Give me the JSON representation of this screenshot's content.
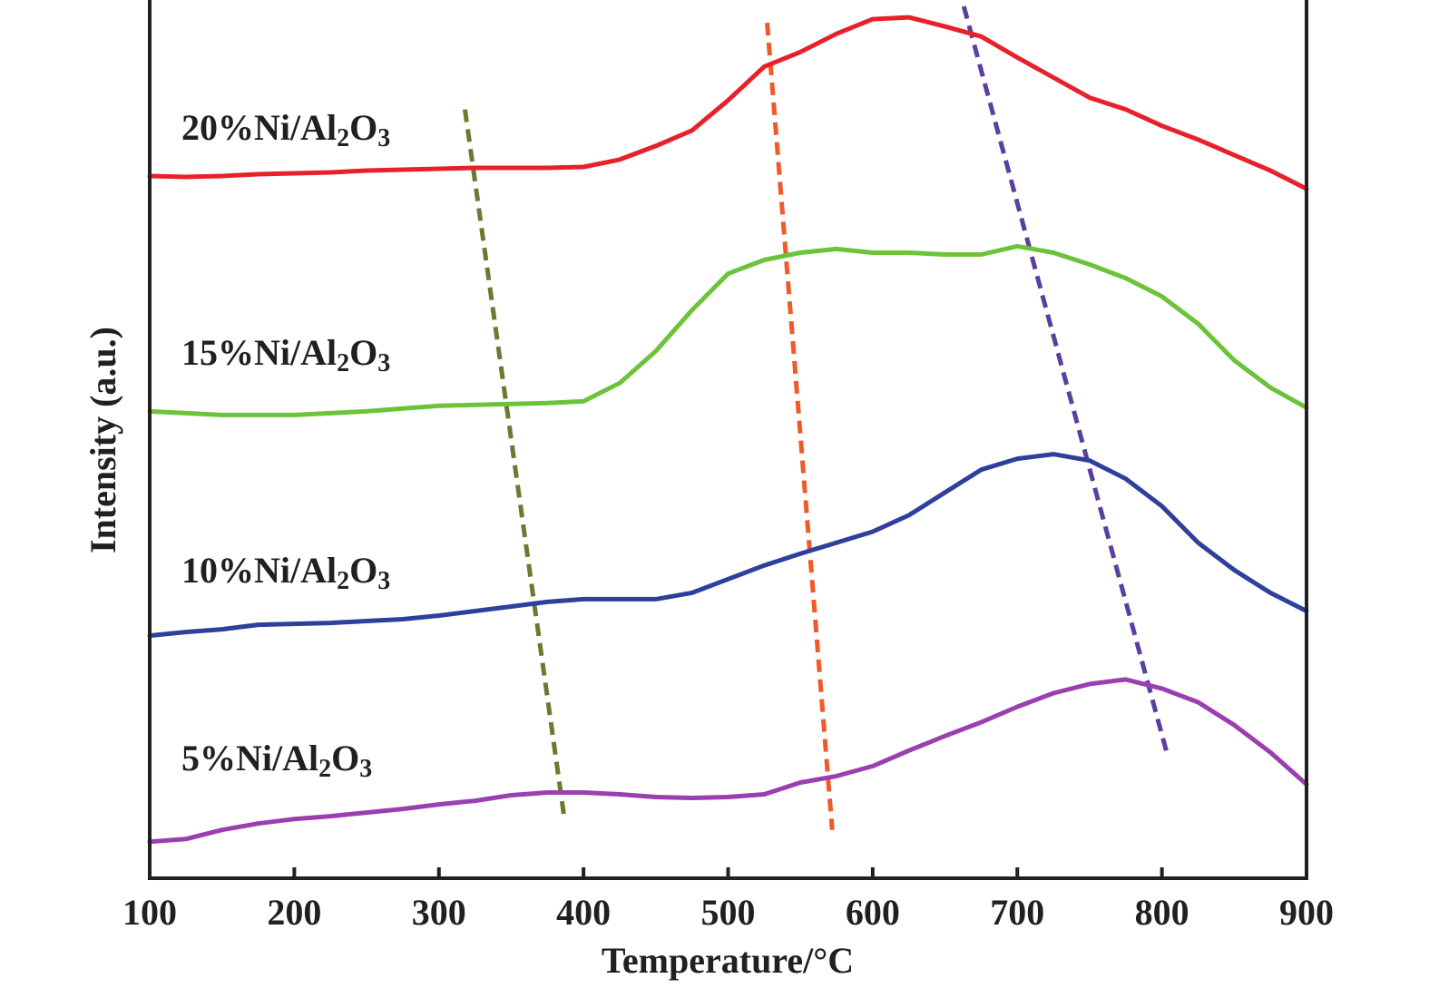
{
  "chart_data": {
    "type": "line",
    "x_label": "Temperature/°C",
    "y_label": "Intensity (a.u.)",
    "xlim": [
      100,
      900
    ],
    "xticks": [
      100,
      200,
      300,
      400,
      500,
      600,
      700,
      800,
      900
    ],
    "ylim": [
      0,
      968
    ],
    "x": [
      100,
      125,
      150,
      175,
      200,
      225,
      250,
      275,
      300,
      325,
      350,
      375,
      400,
      425,
      450,
      475,
      500,
      525,
      550,
      575,
      600,
      625,
      650,
      675,
      700,
      725,
      750,
      775,
      800,
      825,
      850,
      875,
      900
    ],
    "series": [
      {
        "name": "20%Ni/Al2O3",
        "color": "#e8202a",
        "values": [
          770,
          769,
          770,
          772,
          773,
          774,
          776,
          777,
          778,
          779,
          779,
          779,
          780,
          788,
          803,
          820,
          853,
          890,
          906,
          926,
          942,
          944,
          934,
          923,
          900,
          878,
          856,
          843,
          825,
          810,
          793,
          776,
          756
        ]
      },
      {
        "name": "15%Ni/Al2O3",
        "color": "#6cc33a",
        "values": [
          512,
          510,
          508,
          508,
          508,
          510,
          512,
          515,
          518,
          519,
          520,
          521,
          523,
          543,
          578,
          623,
          663,
          678,
          686,
          690,
          686,
          686,
          684,
          684,
          693,
          686,
          673,
          658,
          638,
          608,
          568,
          538,
          516
        ]
      },
      {
        "name": "10%Ni/Al2O3",
        "color": "#2e3f9c",
        "values": [
          266,
          270,
          273,
          278,
          279,
          280,
          282,
          284,
          288,
          293,
          298,
          303,
          306,
          306,
          306,
          313,
          328,
          343,
          356,
          368,
          380,
          398,
          423,
          448,
          460,
          465,
          458,
          438,
          408,
          368,
          338,
          313,
          293
        ]
      },
      {
        "name": "5%Ni/Al2O3",
        "color": "#9b3fb0",
        "values": [
          40,
          43,
          53,
          60,
          65,
          68,
          72,
          76,
          81,
          85,
          91,
          94,
          94,
          92,
          89,
          88,
          89,
          92,
          105,
          112,
          123,
          140,
          156,
          171,
          188,
          203,
          213,
          218,
          208,
          193,
          168,
          138,
          103
        ]
      }
    ],
    "reference_lines": [
      {
        "color": "#6b7a2e",
        "x": [
          318,
          387
        ],
        "y": [
          843,
          63
        ]
      },
      {
        "color": "#f05a28",
        "x": [
          527,
          572
        ],
        "y": [
          938,
          53
        ]
      },
      {
        "color": "#5b3fa0",
        "x": [
          663,
          803
        ],
        "y": [
          956,
          140
        ]
      }
    ]
  }
}
